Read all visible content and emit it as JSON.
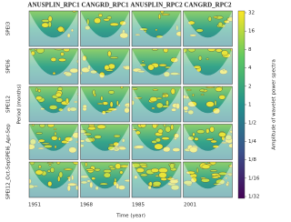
{
  "figure": {
    "columns": [
      "ANUSPLIN_RPC1",
      "CANGRD_RPC1",
      "ANUSPLIN_RPC2",
      "CANGRD_RPC2"
    ],
    "rows": [
      "SPEI3",
      "SPEI6",
      "SPEI12",
      "SPEI6_Apr-Sep",
      "SPEI12_Oct-Sep"
    ],
    "y_label": "Period (months)",
    "x_label": "Time (year)",
    "x_ticks": [
      "1951",
      "1968",
      "1985",
      "2001"
    ],
    "colorbar": {
      "label": "Amplitude of wavelet power spectra",
      "ticks": [
        "32",
        "16",
        "8",
        "4",
        "2",
        "1",
        "1/2",
        "1/4",
        "1/8",
        "1/16",
        "1/32"
      ]
    }
  }
}
